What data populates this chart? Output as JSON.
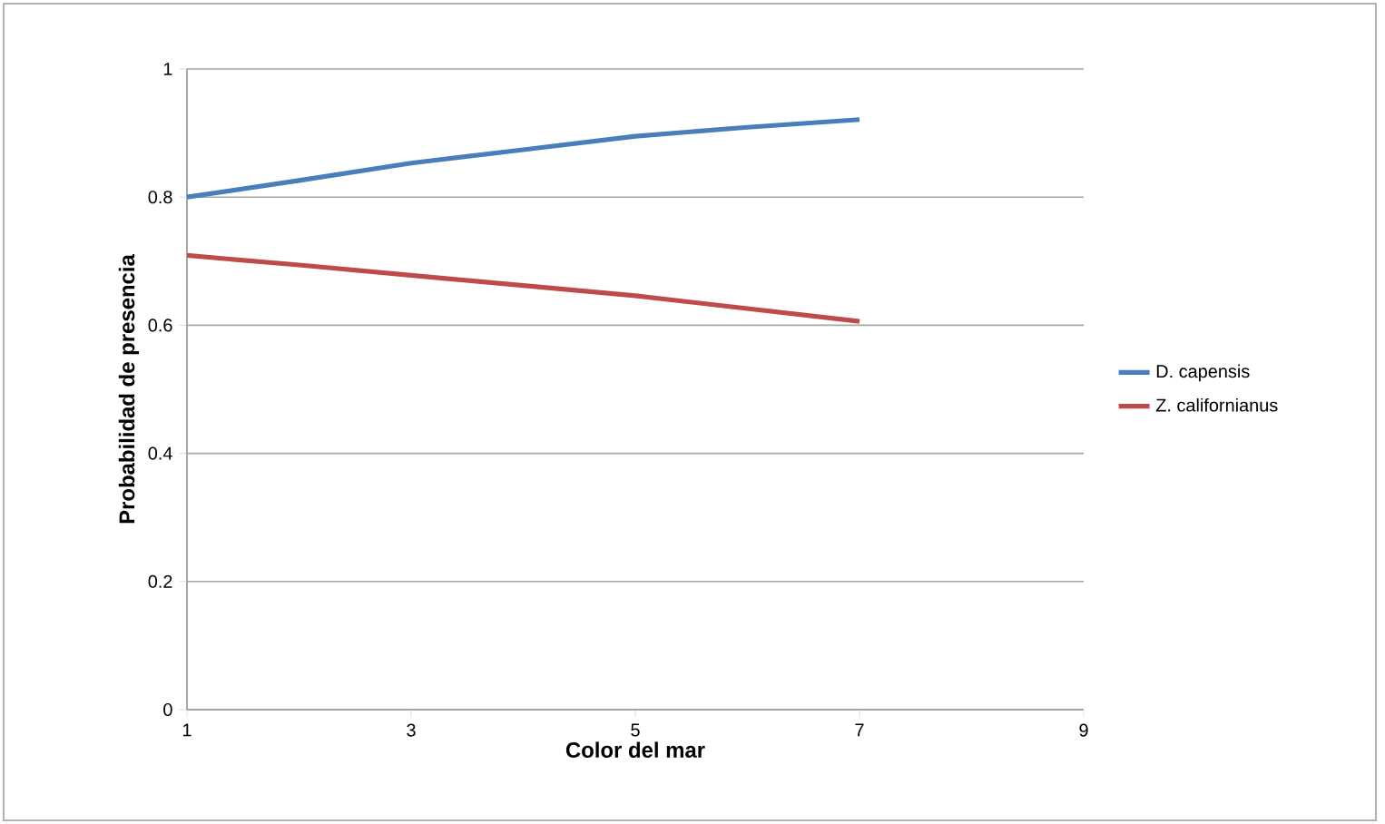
{
  "chart_data": {
    "type": "line",
    "xlabel": "Color del mar",
    "ylabel": "Probabilidad de presencia",
    "x": [
      1,
      2,
      3,
      4,
      5,
      6,
      7
    ],
    "series": [
      {
        "name": "D. capensis",
        "color": "#4a7ebb",
        "values": [
          0.8,
          0.826,
          0.853,
          0.874,
          0.895,
          0.909,
          0.921
        ]
      },
      {
        "name": "Z. californianus",
        "color": "#be4b48",
        "values": [
          0.709,
          0.694,
          0.678,
          0.662,
          0.646,
          0.626,
          0.606
        ]
      }
    ],
    "xlim": [
      1,
      9
    ],
    "xticks": [
      1,
      3,
      5,
      7,
      9
    ],
    "ylim": [
      0,
      1
    ],
    "yticks": [
      0,
      0.2,
      0.4,
      0.6,
      0.8,
      1
    ],
    "grid": "y",
    "legend": "right",
    "marker": "none",
    "line_style": "solid"
  }
}
